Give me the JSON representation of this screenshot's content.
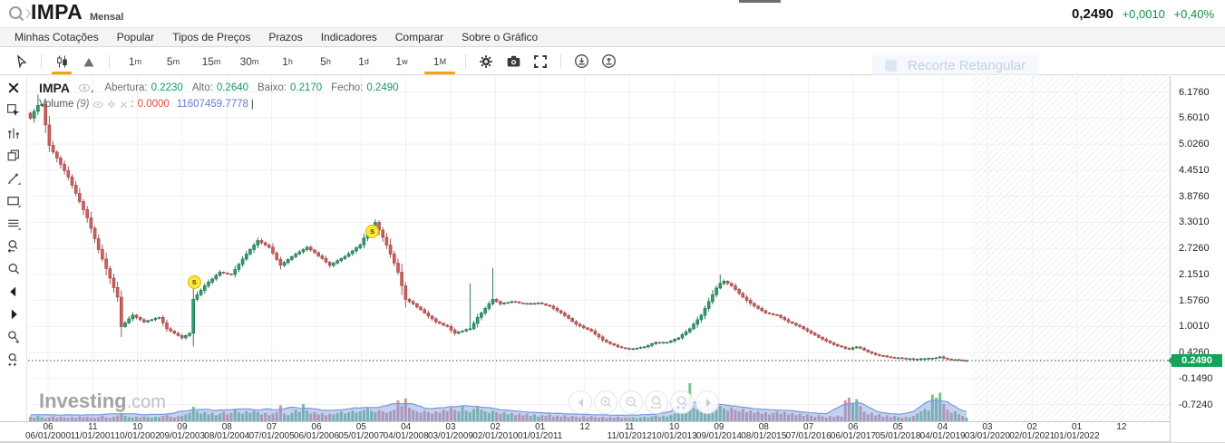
{
  "header": {
    "symbol": "IMPA",
    "timeframe_label": "Mensal",
    "price": "0,2490",
    "change": "+0,0010",
    "change_pct": "+0,40%",
    "change_color": "#0b9444"
  },
  "menu": {
    "items": [
      "Minhas Cotações",
      "Popular",
      "Tipos de Preços",
      "Prazos",
      "Indicadores",
      "Comparar",
      "Sobre o Gráfico"
    ]
  },
  "toolbar": {
    "accent_color": "#f7a400",
    "timeframes": [
      {
        "num": "1",
        "unit": "m",
        "active": false
      },
      {
        "num": "5",
        "unit": "m",
        "active": false
      },
      {
        "num": "15",
        "unit": "m",
        "active": false
      },
      {
        "num": "30",
        "unit": "m",
        "active": false
      },
      {
        "num": "1",
        "unit": "h",
        "active": false
      },
      {
        "num": "5",
        "unit": "h",
        "active": false
      },
      {
        "num": "1",
        "unit": "d",
        "active": false
      },
      {
        "num": "1",
        "unit": "w",
        "active": false
      },
      {
        "num": "1",
        "unit": "M",
        "active": true
      }
    ],
    "overlay_tooltip": "Recorte Retangular"
  },
  "sidebar": {
    "tools": [
      "close",
      "select",
      "indicator-adjust",
      "duplicate",
      "draw",
      "shape",
      "lines",
      "zoom-back",
      "magnify",
      "pan-left",
      "pan-right",
      "zoom-in",
      "zoom-in-plus"
    ]
  },
  "legend": {
    "symbol": "IMPA",
    "fields": [
      {
        "label": "Abertura:",
        "value": "0.2230"
      },
      {
        "label": "Alto:",
        "value": "0.2640"
      },
      {
        "label": "Baixo:",
        "value": "0.2170"
      },
      {
        "label": "Fecho:",
        "value": "0.2490"
      }
    ],
    "value_color": "#12996e",
    "volume": {
      "label": "Volume",
      "param": "(9)",
      "colon": ":",
      "value_red": "0.0000",
      "value_blue": "11607459.7778",
      "caret": "|"
    }
  },
  "watermark": {
    "bold": "Investing",
    "suffix": ".com"
  },
  "price_axis": {
    "ticks": [
      "6.1760",
      "5.6010",
      "5.0260",
      "4.4510",
      "3.8760",
      "3.3010",
      "2.7260",
      "2.1510",
      "1.5760",
      "1.0010",
      "0.4260",
      "-0.1490",
      "-0.7240"
    ],
    "current": {
      "label": "0.2490",
      "color": "#12a459"
    }
  },
  "time_axis": {
    "ticks": [
      {
        "day": "06",
        "date": "06/01/2000"
      },
      {
        "day": "11",
        "date": "11/01/2001"
      },
      {
        "day": "10",
        "date": "10/01/2002"
      },
      {
        "day": "09",
        "date": "09/01/2003"
      },
      {
        "day": "08",
        "date": "08/01/2004"
      },
      {
        "day": "07",
        "date": "07/01/2005"
      },
      {
        "day": "06",
        "date": "06/01/2006"
      },
      {
        "day": "05",
        "date": "05/01/2007"
      },
      {
        "day": "04",
        "date": "04/01/2008"
      },
      {
        "day": "03",
        "date": "03/01/2009"
      },
      {
        "day": "02",
        "date": "02/01/2010"
      },
      {
        "day": "01",
        "date": "01/01/2011"
      },
      {
        "day": "12",
        "date": ""
      },
      {
        "day": "11",
        "date": "11/01/2012"
      },
      {
        "day": "10",
        "date": "10/01/2013"
      },
      {
        "day": "09",
        "date": "09/01/2014"
      },
      {
        "day": "08",
        "date": "08/01/2015"
      },
      {
        "day": "07",
        "date": "07/01/2016"
      },
      {
        "day": "06",
        "date": "06/01/2017"
      },
      {
        "day": "05",
        "date": "05/01/2018"
      },
      {
        "day": "04",
        "date": "04/01/2019"
      },
      {
        "day": "03",
        "date": "03/01/2020"
      },
      {
        "day": "02",
        "date": "02/01/2021"
      },
      {
        "day": "01",
        "date": "01/01/2022"
      },
      {
        "day": "12",
        "date": ""
      }
    ]
  },
  "nav_buttons": [
    "pan-left",
    "zoom-in",
    "zoom-out",
    "zoom-reset",
    "zoom-in-more",
    "pan-right"
  ],
  "chart_data": {
    "type": "candlestick",
    "symbol": "IMPA",
    "interval": "Mensal",
    "ylim": [
      -0.724,
      6.176
    ],
    "price_line": 0.249,
    "grid": true,
    "closes": [
      5.6,
      5.75,
      5.88,
      5.9,
      5.45,
      5.0,
      4.85,
      4.72,
      4.58,
      4.44,
      4.3,
      4.12,
      3.94,
      3.76,
      3.58,
      3.4,
      3.17,
      2.94,
      2.7,
      2.49,
      2.28,
      2.07,
      1.86,
      1.65,
      1.0,
      1.08,
      1.17,
      1.25,
      1.2,
      1.15,
      1.1,
      1.13,
      1.15,
      1.18,
      1.2,
      1.08,
      0.95,
      0.9,
      0.85,
      0.8,
      0.75,
      0.8,
      0.85,
      1.6,
      1.7,
      1.8,
      1.9,
      1.98,
      2.05,
      2.13,
      2.2,
      2.18,
      2.16,
      2.15,
      2.26,
      2.37,
      2.49,
      2.6,
      2.7,
      2.8,
      2.9,
      2.85,
      2.8,
      2.75,
      2.62,
      2.48,
      2.35,
      2.41,
      2.48,
      2.54,
      2.6,
      2.65,
      2.7,
      2.75,
      2.69,
      2.63,
      2.56,
      2.5,
      2.42,
      2.35,
      2.4,
      2.45,
      2.5,
      2.55,
      2.61,
      2.67,
      2.74,
      2.8,
      2.95,
      3.1,
      3.2,
      3.3,
      3.13,
      2.97,
      2.8,
      2.6,
      2.4,
      2.2,
      1.9,
      1.6,
      1.55,
      1.5,
      1.43,
      1.37,
      1.3,
      1.23,
      1.17,
      1.1,
      1.07,
      1.03,
      1.0,
      0.92,
      0.85,
      0.88,
      0.9,
      0.93,
      0.95,
      1.07,
      1.2,
      1.3,
      1.4,
      1.5,
      1.6,
      1.55,
      1.5,
      1.52,
      1.53,
      1.55,
      1.54,
      1.52,
      1.51,
      1.5,
      1.51,
      1.51,
      1.52,
      1.5,
      1.47,
      1.45,
      1.4,
      1.35,
      1.3,
      1.24,
      1.18,
      1.11,
      1.05,
      1.01,
      0.97,
      0.94,
      0.9,
      0.83,
      0.77,
      0.7,
      0.66,
      0.62,
      0.59,
      0.55,
      0.53,
      0.52,
      0.5,
      0.51,
      0.52,
      0.54,
      0.55,
      0.58,
      0.62,
      0.65,
      0.64,
      0.65,
      0.65,
      0.68,
      0.72,
      0.75,
      0.82,
      0.88,
      0.95,
      1.05,
      1.15,
      1.25,
      1.4,
      1.55,
      1.7,
      1.85,
      1.95,
      2.0,
      1.95,
      1.9,
      1.82,
      1.73,
      1.65,
      1.58,
      1.51,
      1.45,
      1.4,
      1.35,
      1.3,
      1.28,
      1.26,
      1.25,
      1.2,
      1.15,
      1.1,
      1.07,
      1.03,
      1.0,
      0.95,
      0.9,
      0.85,
      0.81,
      0.76,
      0.72,
      0.68,
      0.64,
      0.6,
      0.57,
      0.55,
      0.52,
      0.5,
      0.53,
      0.55,
      0.52,
      0.48,
      0.44,
      0.41,
      0.38,
      0.36,
      0.35,
      0.33,
      0.32,
      0.31,
      0.31,
      0.3,
      0.29,
      0.29,
      0.28,
      0.28,
      0.29,
      0.29,
      0.3,
      0.3,
      0.31,
      0.33,
      0.3,
      0.28,
      0.27,
      0.27,
      0.26,
      0.25,
      0.25
    ],
    "volumes": [
      12,
      9,
      14,
      11,
      8,
      10,
      13,
      9,
      12,
      10,
      8,
      11,
      9,
      13,
      10,
      12,
      9,
      8,
      11,
      14,
      10,
      9,
      12,
      15,
      22,
      14,
      11,
      9,
      12,
      10,
      13,
      11,
      9,
      12,
      10,
      14,
      16,
      12,
      10,
      13,
      15,
      18,
      22,
      38,
      26,
      20,
      24,
      18,
      22,
      16,
      20,
      25,
      18,
      22,
      30,
      24,
      20,
      26,
      22,
      28,
      24,
      18,
      22,
      16,
      20,
      24,
      42,
      20,
      16,
      22,
      30,
      24,
      45,
      28,
      20,
      24,
      18,
      22,
      16,
      20,
      18,
      22,
      26,
      20,
      24,
      28,
      22,
      26,
      30,
      34,
      28,
      24,
      30,
      26,
      22,
      26,
      30,
      55,
      40,
      60,
      35,
      30,
      26,
      22,
      28,
      24,
      20,
      26,
      22,
      30,
      26,
      35,
      30,
      26,
      40,
      28,
      24,
      32,
      38,
      30,
      26,
      22,
      28,
      24,
      20,
      24,
      18,
      22,
      16,
      20,
      16,
      20,
      14,
      18,
      12,
      16,
      14,
      18,
      12,
      15,
      12,
      16,
      10,
      14,
      12,
      9,
      13,
      10,
      14,
      11,
      9,
      12,
      8,
      11,
      9,
      12,
      8,
      10,
      9,
      11,
      8,
      10,
      12,
      9,
      13,
      15,
      11,
      14,
      12,
      16,
      20,
      24,
      28,
      22,
      100,
      35,
      30,
      38,
      32,
      42,
      36,
      30,
      40,
      34,
      28,
      36,
      30,
      26,
      32,
      24,
      28,
      22,
      26,
      20,
      24,
      18,
      22,
      26,
      20,
      24,
      18,
      22,
      16,
      20,
      14,
      18,
      15,
      12,
      16,
      13,
      10,
      14,
      11,
      15,
      12,
      55,
      62,
      48,
      58,
      40,
      25,
      18,
      22,
      15,
      19,
      12,
      16,
      10,
      14,
      11,
      9,
      12,
      10,
      14,
      20,
      26,
      32,
      28,
      70,
      62,
      75,
      45,
      30,
      22,
      26,
      18,
      14,
      10
    ],
    "wick_overrides": {
      "2": 6.12,
      "43": 1.85,
      "116": 1.95,
      "122": 2.3,
      "182": 2.15
    },
    "markers": [
      {
        "index": 43,
        "price": 2.0,
        "label": "s"
      },
      {
        "index": 90,
        "price": 3.12,
        "label": "s"
      }
    ],
    "colors": {
      "up": "#2f9e6e",
      "up_border": "#1b6e4a",
      "down": "#cc5f5f",
      "down_border": "#9e4444",
      "vol_up": "rgba(84,178,115,0.8)",
      "vol_down": "rgba(196,122,134,0.8)",
      "ma_fill": "rgba(125,155,220,0.45)",
      "ma_line": "#7b97da",
      "grid": "#f0f0f3",
      "price_line": "#3f3f3f",
      "hatch": "#e9e9ee"
    }
  }
}
